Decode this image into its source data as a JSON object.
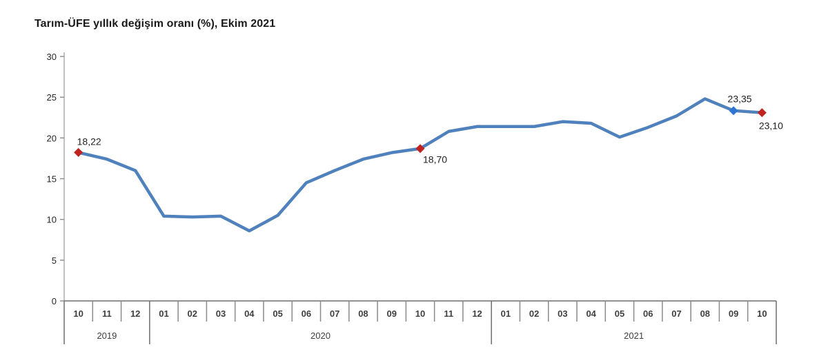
{
  "title": "Tarım-ÜFE yıllık değişim oranı (%), Ekim 2021",
  "chart_data": {
    "type": "line",
    "title": "Tarım-ÜFE yıllık değişim oranı (%), Ekim 2021",
    "x_month_labels": [
      "10",
      "11",
      "12",
      "01",
      "02",
      "03",
      "04",
      "05",
      "06",
      "07",
      "08",
      "09",
      "10",
      "11",
      "12",
      "01",
      "02",
      "03",
      "04",
      "05",
      "06",
      "07",
      "08",
      "09",
      "10"
    ],
    "year_groups": [
      {
        "label": "2019",
        "months": 3
      },
      {
        "label": "2020",
        "months": 12
      },
      {
        "label": "2021",
        "months": 10
      }
    ],
    "values": [
      18.22,
      17.4,
      16.0,
      10.4,
      10.3,
      10.4,
      8.6,
      10.5,
      14.5,
      16.0,
      17.4,
      18.2,
      18.7,
      20.8,
      21.4,
      21.4,
      21.4,
      22.0,
      21.8,
      20.1,
      21.3,
      22.7,
      24.8,
      23.35,
      23.1
    ],
    "labeled_points": [
      {
        "index": 0,
        "label": "18,22",
        "marker": "red",
        "position": "above-right"
      },
      {
        "index": 12,
        "label": "18,70",
        "marker": "red",
        "position": "below-right"
      },
      {
        "index": 23,
        "label": "23,35",
        "marker": "blue",
        "position": "above"
      },
      {
        "index": 24,
        "label": "23,10",
        "marker": "red",
        "position": "below"
      }
    ],
    "ylim": [
      0,
      30
    ],
    "yticks": [
      0,
      5,
      10,
      15,
      20,
      25,
      30
    ],
    "colors": {
      "line": "#4f81bd",
      "marker_red": "#bf2320",
      "marker_blue": "#2f76d2"
    },
    "grid": false,
    "legend": false
  }
}
